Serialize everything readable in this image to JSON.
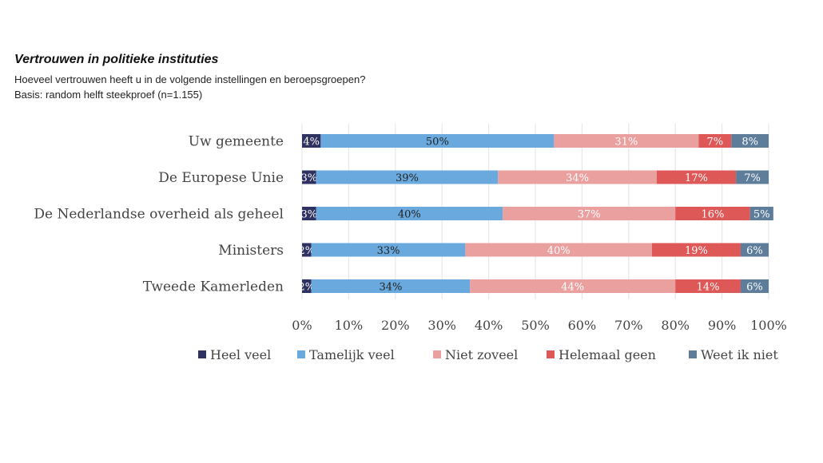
{
  "chart_data": {
    "type": "bar",
    "orientation": "horizontal",
    "stacked": true,
    "title": "Vertrouwen in politieke instituties",
    "subtitle": "Hoeveel vertrouwen heeft u in de volgende instellingen en beroepsgroepen?",
    "note": "Basis: random helft steekproef (n=1.155)",
    "categories": [
      "Uw gemeente",
      "De Europese Unie",
      "De Nederlandse overheid als geheel",
      "Ministers",
      "Tweede Kamerleden"
    ],
    "series": [
      {
        "name": "Heel veel",
        "color": "#2f3160",
        "label_color": "#ffffff",
        "values": [
          4,
          3,
          3,
          2,
          2
        ]
      },
      {
        "name": "Tamelijk veel",
        "color": "#69a9de",
        "label_color": "#222222",
        "values": [
          50,
          39,
          40,
          33,
          34
        ]
      },
      {
        "name": "Niet zoveel",
        "color": "#eba0a0",
        "label_color": "#ffffff",
        "values": [
          31,
          34,
          37,
          40,
          44
        ]
      },
      {
        "name": "Helemaal geen",
        "color": "#de5858",
        "label_color": "#ffffff",
        "values": [
          7,
          17,
          16,
          19,
          14
        ]
      },
      {
        "name": "Weet ik niet",
        "color": "#5d7d9a",
        "label_color": "#ffffff",
        "values": [
          8,
          7,
          5,
          6,
          6
        ]
      }
    ],
    "xlim": [
      0,
      100
    ],
    "x_ticks": [
      "0%",
      "10%",
      "20%",
      "30%",
      "40%",
      "50%",
      "60%",
      "70%",
      "80%",
      "90%",
      "100%"
    ],
    "grid": true,
    "legend_position": "bottom"
  }
}
